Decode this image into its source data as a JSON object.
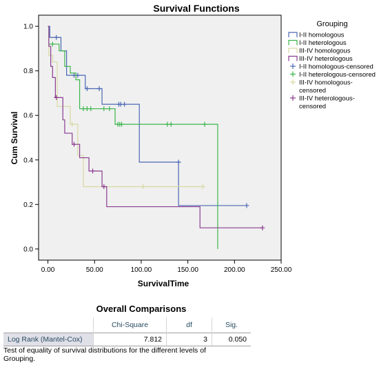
{
  "chart_data": {
    "type": "line",
    "title": "Survival Functions",
    "xlabel": "SurvivalTime",
    "ylabel": "Cum Survival",
    "xlim": [
      -10,
      250
    ],
    "ylim": [
      -0.05,
      1.05
    ],
    "x_ticks": [
      "0.00",
      "50.00",
      "100.00",
      "150.00",
      "200.00",
      "250.00"
    ],
    "x_tick_values": [
      0,
      50,
      100,
      150,
      200,
      250
    ],
    "y_ticks": [
      "0.0",
      "0.2",
      "0.4",
      "0.6",
      "0.8",
      "1.0"
    ],
    "y_tick_values": [
      0,
      0.2,
      0.4,
      0.6,
      0.8,
      1.0
    ],
    "grid": false,
    "legend_position": "right",
    "legend_title": "Grouping",
    "series": [
      {
        "name": "I-II homologous",
        "censored_name": "I-II homologous-censored",
        "color": "#4a67b4",
        "steps": [
          [
            0,
            1.0
          ],
          [
            2,
            0.95
          ],
          [
            14,
            0.89
          ],
          [
            20,
            0.78
          ],
          [
            40,
            0.72
          ],
          [
            58,
            0.65
          ],
          [
            98,
            0.39
          ],
          [
            140,
            0.195
          ]
        ],
        "end": 213,
        "censored": [
          [
            9,
            0.95
          ],
          [
            28,
            0.78
          ],
          [
            32,
            0.78
          ],
          [
            42,
            0.72
          ],
          [
            55,
            0.72
          ],
          [
            76,
            0.65
          ],
          [
            78,
            0.65
          ],
          [
            82,
            0.65
          ],
          [
            140,
            0.39
          ],
          [
            213,
            0.195
          ]
        ]
      },
      {
        "name": "I-II heterologous",
        "censored_name": "I-II heterologous-censored",
        "color": "#3ab54a",
        "steps": [
          [
            0,
            1.0
          ],
          [
            1,
            0.92
          ],
          [
            12,
            0.89
          ],
          [
            18,
            0.82
          ],
          [
            24,
            0.79
          ],
          [
            30,
            0.76
          ],
          [
            34,
            0.63
          ],
          [
            72,
            0.56
          ],
          [
            182,
            0.0
          ]
        ],
        "end": 182,
        "censored": [
          [
            5,
            0.92
          ],
          [
            38,
            0.63
          ],
          [
            42,
            0.63
          ],
          [
            46,
            0.63
          ],
          [
            60,
            0.63
          ],
          [
            66,
            0.63
          ],
          [
            75,
            0.56
          ],
          [
            77,
            0.56
          ],
          [
            79,
            0.56
          ],
          [
            128,
            0.56
          ],
          [
            132,
            0.56
          ],
          [
            168,
            0.56
          ]
        ]
      },
      {
        "name": "III-IV homologous",
        "censored_name": "III-IV homologous-\ncensored",
        "color": "#d8d8a4",
        "steps": [
          [
            0,
            1.0
          ],
          [
            1,
            0.87
          ],
          [
            5,
            0.84
          ],
          [
            10,
            0.64
          ],
          [
            24,
            0.56
          ],
          [
            32,
            0.42
          ],
          [
            38,
            0.28
          ]
        ],
        "end": 166,
        "censored": [
          [
            26,
            0.56
          ],
          [
            102,
            0.28
          ],
          [
            166,
            0.28
          ]
        ]
      },
      {
        "name": "III-IV heterologous",
        "censored_name": "III-IV heterologous-\ncensored",
        "color": "#8a3a90",
        "steps": [
          [
            0,
            1.0
          ],
          [
            1,
            0.91
          ],
          [
            3,
            0.82
          ],
          [
            5,
            0.77
          ],
          [
            8,
            0.68
          ],
          [
            16,
            0.58
          ],
          [
            18,
            0.52
          ],
          [
            26,
            0.47
          ],
          [
            34,
            0.41
          ],
          [
            44,
            0.35
          ],
          [
            58,
            0.28
          ],
          [
            63,
            0.19
          ],
          [
            163,
            0.095
          ]
        ],
        "end": 230,
        "censored": [
          [
            9,
            0.68
          ],
          [
            28,
            0.47
          ],
          [
            48,
            0.35
          ],
          [
            60,
            0.28
          ],
          [
            230,
            0.095
          ]
        ]
      }
    ]
  },
  "stats_table": {
    "title": "Overall Comparisons",
    "headers": [
      "",
      "Chi-Square",
      "df",
      "Sig."
    ],
    "row": {
      "label": "Log Rank (Mantel-Cox)",
      "chi_square": "7.812",
      "df": "3",
      "sig": "0.050"
    },
    "footnote": "Test of equality of survival distributions for the different levels of Grouping."
  }
}
